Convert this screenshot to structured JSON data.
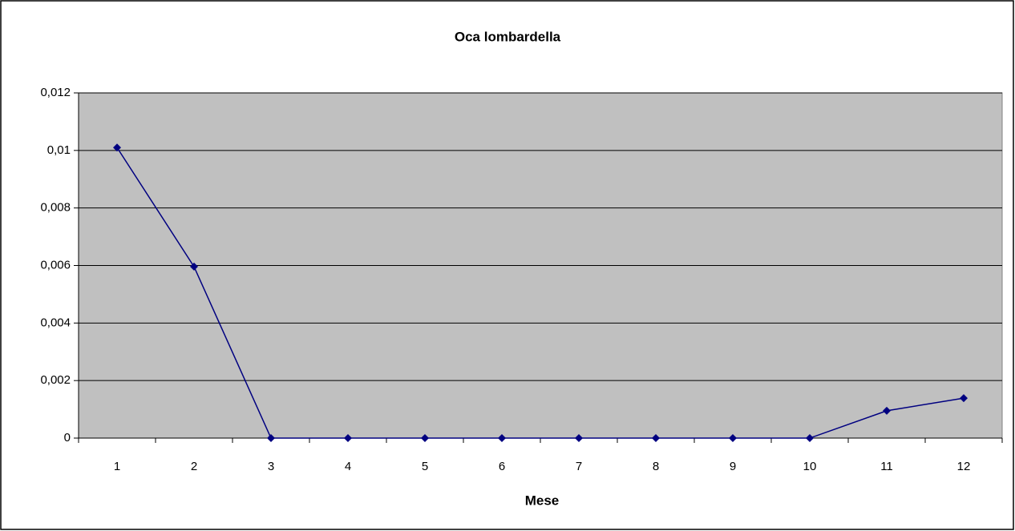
{
  "chart_data": {
    "type": "line",
    "title": "Oca lombardella",
    "x_label": "Mese",
    "categories": [
      "1",
      "2",
      "3",
      "4",
      "5",
      "6",
      "7",
      "8",
      "9",
      "10",
      "11",
      "12"
    ],
    "series": [
      {
        "name": "Oca lombardella",
        "color": "#000080",
        "values": [
          0.0101,
          0.00596,
          0,
          0,
          0,
          0,
          0,
          0,
          0,
          0,
          0.00095,
          0.00139
        ]
      }
    ],
    "ylim": [
      0,
      0.012
    ],
    "yticks": [
      0,
      {
        "value": 0.002,
        "label": "0,002"
      },
      {
        "value": 0.004,
        "label": "0,004"
      },
      {
        "value": 0.006,
        "label": "0,006"
      },
      {
        "value": 0.008,
        "label": "0,008"
      },
      {
        "value": 0.01,
        "label": "0,01"
      },
      {
        "value": 0.012,
        "label": "0,012"
      }
    ],
    "grid": true,
    "plot_background": "#c0c0c0"
  }
}
